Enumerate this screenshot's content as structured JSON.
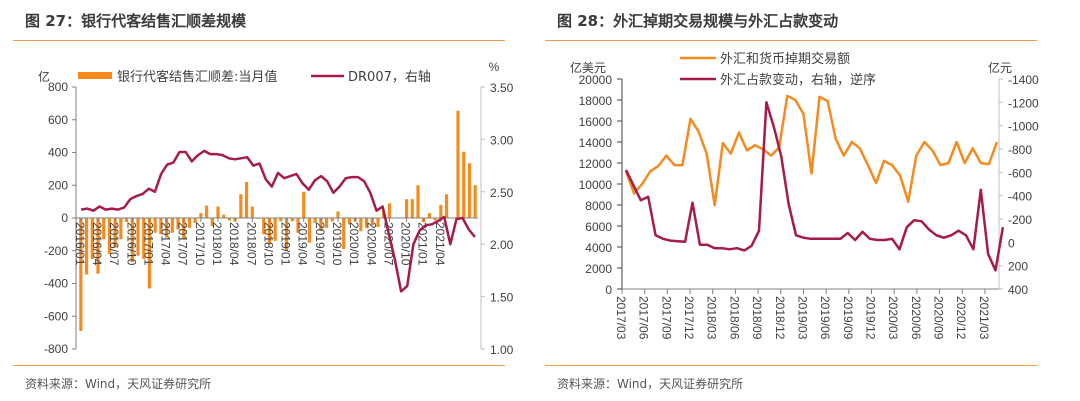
{
  "left_panel": {
    "title": "图 27：银行代客结售汇顺差规模",
    "source": "资料来源：Wind，天风证券研究所"
  },
  "right_panel": {
    "title": "图 28：外汇掉期交易规模与外汇占款变动",
    "source": "资料来源：Wind，天风证券研究所"
  },
  "colors": {
    "orange": "#f58a1f",
    "crimson": "#a51c45",
    "rule": "#f39b4a"
  },
  "chart_data": [
    {
      "type": "bar+line",
      "title": "图 27：银行代客结售汇顺差规模",
      "left_unit": "亿",
      "right_unit": "%",
      "ylim": [
        -800,
        800
      ],
      "yticks": [
        "800",
        "600",
        "400",
        "200",
        "0",
        "-200",
        "-400",
        "-600",
        "-800"
      ],
      "y2lim": [
        1.0,
        3.5
      ],
      "y2ticks": [
        "3.50",
        "3.00",
        "2.50",
        "2.00",
        "1.50",
        "1.00"
      ],
      "xticks": [
        "2016/01",
        "2016/04",
        "2016/07",
        "2016/10",
        "2017/01",
        "2017/04",
        "2017/07",
        "2017/10",
        "2018/01",
        "2018/04",
        "2018/07",
        "2018/10",
        "2019/01",
        "2019/04",
        "2019/07",
        "2019/10",
        "2020/01",
        "2020/04",
        "2020/07",
        "2020/10",
        "2021/01",
        "2021/04"
      ],
      "legend": [
        "银行代客结售汇顺差:当月值",
        "DR007，右轴"
      ],
      "series": [
        {
          "name": "银行代客结售汇顺差:当月值",
          "type": "bar",
          "values": [
            -690,
            -345,
            -250,
            -340,
            -130,
            -220,
            -180,
            -130,
            -25,
            -270,
            -230,
            -250,
            -430,
            -90,
            -100,
            -120,
            -90,
            -70,
            -125,
            -60,
            -30,
            30,
            75,
            -50,
            70,
            20,
            -15,
            -20,
            145,
            220,
            70,
            -5,
            -100,
            -160,
            -140,
            -20,
            -200,
            -20,
            -90,
            160,
            -150,
            -30,
            -80,
            -60,
            -20,
            40,
            -190,
            -40,
            -20,
            -80,
            -60,
            -45,
            -55,
            40,
            90,
            0,
            0,
            115,
            115,
            200,
            -25,
            30,
            -15,
            80,
            145,
            0,
            655,
            405,
            335,
            200
          ],
          "months": "2016/01-2021/10 (monthly)"
        },
        {
          "name": "DR007，右轴",
          "type": "line",
          "values": [
            2.33,
            2.34,
            2.32,
            2.36,
            2.33,
            2.34,
            2.33,
            2.35,
            2.43,
            2.46,
            2.48,
            2.53,
            2.5,
            2.67,
            2.76,
            2.78,
            2.88,
            2.88,
            2.79,
            2.85,
            2.89,
            2.86,
            2.86,
            2.85,
            2.82,
            2.81,
            2.82,
            2.83,
            2.75,
            2.77,
            2.62,
            2.55,
            2.68,
            2.63,
            2.65,
            2.67,
            2.58,
            2.52,
            2.61,
            2.65,
            2.6,
            2.49,
            2.55,
            2.63,
            2.64,
            2.64,
            2.6,
            2.49,
            2.32,
            2.36,
            2.1,
            1.85,
            1.55,
            1.6,
            2.0,
            2.13,
            2.18,
            2.19,
            2.22,
            2.26,
            2.0,
            2.24,
            2.25,
            2.14,
            2.07
          ]
        }
      ]
    },
    {
      "type": "line",
      "title": "图 28：外汇掉期交易规模与外汇占款变动",
      "left_unit": "亿美元",
      "right_unit": "亿元",
      "ylim": [
        0,
        20000
      ],
      "yticks": [
        "20000",
        "18000",
        "16000",
        "14000",
        "12000",
        "10000",
        "8000",
        "6000",
        "4000",
        "2000",
        "0"
      ],
      "y2lim": [
        -1400,
        400
      ],
      "y2_inverted": true,
      "y2ticks": [
        "-1400",
        "-1200",
        "-1000",
        "-800",
        "-600",
        "-400",
        "-200",
        "0",
        "200",
        "400"
      ],
      "xticks": [
        "2017/03",
        "2017/06",
        "2017/09",
        "2017/12",
        "2018/03",
        "2018/06",
        "2018/09",
        "2018/12",
        "2019/03",
        "2019/06",
        "2019/09",
        "2019/12",
        "2020/03",
        "2020/06",
        "2020/09",
        "2020/12",
        "2021/03"
      ],
      "legend": [
        "外汇和货币掉期交易额",
        "外汇占款变动，右轴，逆序"
      ],
      "series": [
        {
          "name": "外汇和货币掉期交易额",
          "axis": "left",
          "values": [
            11200,
            9100,
            10000,
            11200,
            11700,
            12700,
            11800,
            11800,
            16200,
            15000,
            12900,
            8000,
            13900,
            12900,
            14900,
            13200,
            13700,
            13300,
            12700,
            13500,
            18400,
            18000,
            16700,
            11000,
            18300,
            17900,
            14300,
            12700,
            14000,
            13400,
            11800,
            10100,
            12200,
            11800,
            10800,
            8300,
            12700,
            14000,
            13200,
            11800,
            12000,
            14000,
            12000,
            13400,
            12000,
            11900,
            14000
          ]
        },
        {
          "name": "外汇占款变动，右轴，逆序",
          "axis": "right",
          "values": [
            -620,
            -490,
            -360,
            -390,
            -60,
            -30,
            -15,
            -10,
            -5,
            -340,
            20,
            20,
            50,
            50,
            60,
            50,
            70,
            30,
            -100,
            -1200,
            -990,
            -740,
            -330,
            -60,
            -40,
            -30,
            -30,
            -30,
            -30,
            -30,
            -80,
            -20,
            -90,
            -30,
            -20,
            -20,
            -30,
            60,
            -130,
            -190,
            -180,
            -110,
            -60,
            -40,
            -60,
            -100,
            -60,
            60,
            -450,
            100,
            240,
            -130
          ]
        }
      ]
    }
  ]
}
